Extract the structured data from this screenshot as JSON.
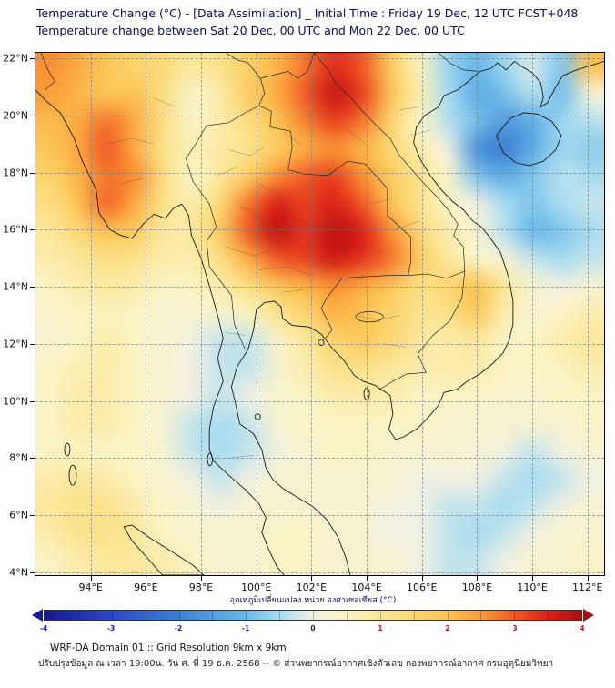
{
  "chart_data": {
    "type": "heatmap",
    "title": "Temperature Change (°C) - [Data Assimilation] _ Initial Time : Friday 19 Dec, 12 UTC FCST+048",
    "subtitle": "Temperature change between Sat 20 Dec, 00 UTC and Mon 22 Dec, 00 UTC",
    "lon_range": [
      92.0,
      112.6
    ],
    "lat_range": [
      3.9,
      22.2
    ],
    "x_ticks": [
      {
        "value": 94,
        "label": "94°E"
      },
      {
        "value": 96,
        "label": "96°E"
      },
      {
        "value": 98,
        "label": "98°E"
      },
      {
        "value": 100,
        "label": "100°E"
      },
      {
        "value": 102,
        "label": "102°E"
      },
      {
        "value": 104,
        "label": "104°E"
      },
      {
        "value": 106,
        "label": "106°E"
      },
      {
        "value": 108,
        "label": "108°E"
      },
      {
        "value": 110,
        "label": "110°E"
      },
      {
        "value": 112,
        "label": "112°E"
      }
    ],
    "y_ticks": [
      {
        "value": 22,
        "label": "22°N"
      },
      {
        "value": 20,
        "label": "20°N"
      },
      {
        "value": 18,
        "label": "18°N"
      },
      {
        "value": 16,
        "label": "16°N"
      },
      {
        "value": 14,
        "label": "14°N"
      },
      {
        "value": 12,
        "label": "12°N"
      },
      {
        "value": 10,
        "label": "10°N"
      },
      {
        "value": 8,
        "label": "8°N"
      },
      {
        "value": 6,
        "label": "6°N"
      },
      {
        "value": 4,
        "label": "4°N"
      }
    ],
    "grid": {
      "lons": [
        92.0,
        93.1,
        94.2,
        95.3,
        96.3,
        97.4,
        98.5,
        99.6,
        100.7,
        101.8,
        102.8,
        103.9,
        105.0,
        106.1,
        107.2,
        108.3,
        109.3,
        110.4,
        111.5,
        112.6
      ],
      "lats": [
        22.2,
        21.2,
        20.2,
        19.2,
        18.2,
        17.1,
        16.1,
        15.1,
        14.1,
        13.1,
        12.0,
        11.0,
        10.0,
        9.0,
        8.0,
        6.9,
        5.9,
        4.9,
        3.9
      ],
      "values": [
        [
          2.6,
          2.3,
          1.9,
          1.6,
          1.4,
          1.0,
          1.2,
          1.7,
          2.2,
          2.8,
          3.4,
          3.0,
          1.8,
          0.6,
          -0.6,
          -1.0,
          -0.6,
          -0.2,
          -0.8,
          2.0
        ],
        [
          2.5,
          2.2,
          1.9,
          2.0,
          1.3,
          0.4,
          0.9,
          1.8,
          2.3,
          3.0,
          3.7,
          3.2,
          2.0,
          0.8,
          -0.5,
          -1.2,
          -0.9,
          -0.4,
          -0.9,
          0.2
        ],
        [
          2.1,
          2.3,
          2.8,
          2.3,
          1.3,
          0.5,
          0.8,
          1.4,
          2.0,
          2.7,
          3.2,
          2.8,
          1.6,
          0.5,
          -0.4,
          -0.9,
          -1.5,
          -1.2,
          -0.6,
          -0.4
        ],
        [
          1.9,
          2.4,
          3.0,
          2.3,
          1.2,
          0.7,
          0.9,
          1.2,
          1.8,
          2.3,
          2.6,
          2.2,
          1.5,
          0.8,
          0.0,
          -1.6,
          -2.0,
          -1.2,
          -0.6,
          -0.7
        ],
        [
          1.6,
          2.2,
          2.8,
          2.6,
          1.3,
          0.5,
          1.0,
          1.8,
          2.6,
          3.0,
          3.2,
          2.6,
          1.8,
          1.2,
          0.4,
          -0.8,
          -1.2,
          -0.8,
          -0.4,
          -0.5
        ],
        [
          1.3,
          2.0,
          2.9,
          2.3,
          1.2,
          0.8,
          1.5,
          2.8,
          3.5,
          3.2,
          3.5,
          3.0,
          2.0,
          1.2,
          0.5,
          0.0,
          -0.5,
          -0.8,
          -0.5,
          -0.3
        ],
        [
          1.0,
          1.5,
          2.0,
          1.8,
          1.0,
          1.0,
          1.8,
          3.0,
          3.8,
          3.3,
          3.8,
          3.5,
          2.6,
          1.5,
          0.8,
          0.3,
          -0.4,
          -1.0,
          -0.8,
          -0.5
        ],
        [
          0.8,
          1.0,
          1.3,
          1.2,
          0.8,
          0.8,
          1.3,
          2.3,
          3.0,
          3.2,
          3.6,
          3.3,
          2.8,
          1.8,
          1.0,
          0.5,
          0.2,
          -0.3,
          -0.5,
          -0.3
        ],
        [
          0.5,
          0.8,
          0.9,
          0.8,
          0.5,
          0.5,
          0.8,
          1.3,
          1.9,
          2.2,
          2.6,
          2.3,
          1.9,
          1.3,
          1.5,
          2.0,
          1.0,
          0.3,
          0.0,
          0.3
        ],
        [
          0.4,
          0.5,
          0.6,
          0.5,
          0.3,
          0.3,
          0.3,
          0.6,
          1.1,
          1.6,
          2.2,
          2.0,
          1.6,
          1.2,
          1.2,
          1.8,
          0.8,
          0.3,
          0.5,
          0.8
        ],
        [
          0.3,
          0.5,
          0.8,
          0.5,
          0.3,
          0.0,
          -0.3,
          -0.3,
          0.4,
          1.0,
          1.6,
          1.8,
          1.5,
          1.0,
          0.8,
          1.0,
          0.5,
          0.5,
          0.8,
          1.0
        ],
        [
          0.5,
          0.7,
          0.8,
          0.5,
          0.3,
          0.0,
          -0.3,
          -0.3,
          0.3,
          0.8,
          1.2,
          1.2,
          1.0,
          0.8,
          0.8,
          0.8,
          0.5,
          0.5,
          0.5,
          0.8
        ],
        [
          0.5,
          0.8,
          0.8,
          0.5,
          0.3,
          0.0,
          -0.3,
          0.0,
          0.3,
          0.5,
          0.8,
          0.8,
          0.8,
          0.5,
          0.5,
          0.5,
          0.3,
          0.3,
          0.5,
          0.5
        ],
        [
          0.5,
          0.8,
          0.8,
          0.5,
          0.2,
          -0.3,
          -0.5,
          -0.3,
          0.3,
          0.5,
          0.5,
          0.5,
          0.5,
          0.5,
          0.3,
          0.3,
          0.3,
          0.3,
          0.3,
          0.5
        ],
        [
          0.5,
          0.6,
          0.5,
          0.5,
          0.3,
          -0.3,
          -0.5,
          -0.3,
          0.0,
          0.3,
          0.5,
          0.5,
          0.3,
          0.3,
          0.3,
          0.3,
          0.0,
          -0.3,
          0.0,
          0.3
        ],
        [
          0.8,
          1.0,
          0.8,
          0.5,
          0.3,
          0.0,
          -0.3,
          0.0,
          0.3,
          0.3,
          0.3,
          0.3,
          0.3,
          0.0,
          0.0,
          0.0,
          -0.3,
          -0.5,
          -0.3,
          0.0
        ],
        [
          1.0,
          1.2,
          1.2,
          0.8,
          0.5,
          0.3,
          0.0,
          0.3,
          0.3,
          0.3,
          0.3,
          0.3,
          0.0,
          0.0,
          -0.3,
          -0.3,
          -0.5,
          -0.3,
          0.0,
          0.3
        ],
        [
          0.8,
          1.2,
          1.2,
          1.0,
          0.5,
          0.3,
          0.3,
          0.3,
          0.5,
          0.5,
          0.3,
          0.3,
          0.0,
          0.0,
          -0.3,
          -0.5,
          -0.3,
          0.0,
          0.3,
          0.3
        ],
        [
          0.5,
          0.8,
          1.0,
          1.0,
          0.8,
          0.5,
          0.3,
          0.3,
          0.5,
          0.5,
          0.3,
          0.3,
          0.3,
          0.0,
          -0.3,
          -0.3,
          0.0,
          0.3,
          0.3,
          0.5
        ]
      ]
    },
    "colorbar": {
      "title": "อุณหภูมิเปลี่ยนแปลง หน่วย องศาเซลเซียส (°C)",
      "range": [
        -4,
        4
      ],
      "ticks": [
        {
          "value": -4,
          "label": "-4"
        },
        {
          "value": -3,
          "label": "-3"
        },
        {
          "value": -2,
          "label": "-2"
        },
        {
          "value": -1,
          "label": "-1"
        },
        {
          "value": 0,
          "label": "0"
        },
        {
          "value": 1,
          "label": "1"
        },
        {
          "value": 2,
          "label": "2"
        },
        {
          "value": 3,
          "label": "3"
        },
        {
          "value": 4,
          "label": "4"
        }
      ],
      "negative_label_color": "#1515c0",
      "positive_label_color": "#c01515",
      "zero_label_color": "#222222",
      "stops": [
        {
          "v": -4.0,
          "c": "#18188f"
        },
        {
          "v": -3.0,
          "c": "#2b48c8"
        },
        {
          "v": -2.0,
          "c": "#3e7fd2"
        },
        {
          "v": -1.0,
          "c": "#6ab8e8"
        },
        {
          "v": -0.5,
          "c": "#a8dcf0"
        },
        {
          "v": 0.0,
          "c": "#f1f0e2"
        },
        {
          "v": 0.5,
          "c": "#faf3c4"
        },
        {
          "v": 1.0,
          "c": "#fbe89c"
        },
        {
          "v": 1.5,
          "c": "#fcd874"
        },
        {
          "v": 2.0,
          "c": "#fbc254"
        },
        {
          "v": 2.5,
          "c": "#fb9e38"
        },
        {
          "v": 3.0,
          "c": "#f05a26"
        },
        {
          "v": 3.5,
          "c": "#dc2018"
        },
        {
          "v": 4.0,
          "c": "#a80d10"
        }
      ]
    },
    "colors": {
      "title": "#0d0d52",
      "axis_label": "#111111",
      "grid_line": "#697887"
    }
  },
  "footer": {
    "line1": "WRF-DA Domain 01 :: Grid Resolution 9km x 9km",
    "line2": "ปรับปรุงข้อมูล ณ เวลา 19:00น. วัน ศ. ที่ 19 ธ.ค. 2568 -- © ส่วนพยากรณ์อากาศเชิงตัวเลข กองพยากรณ์อากาศ กรมอุตุนิยมวิทยา"
  }
}
